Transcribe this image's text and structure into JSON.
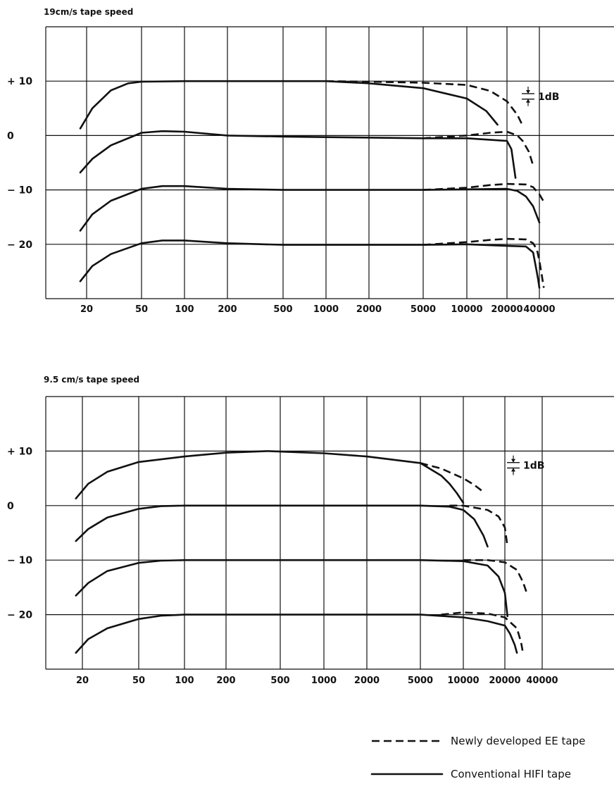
{
  "legend": {
    "entries": [
      {
        "label": "Newly developed EE tape",
        "style": "dashed"
      },
      {
        "label": "Conventional HIFI tape",
        "style": "solid"
      }
    ]
  },
  "chart_data": [
    {
      "type": "line",
      "title": "19cm/s tape speed",
      "xscale": "log",
      "xlim": [
        15,
        60000
      ],
      "ylim": [
        -30,
        20
      ],
      "xticks": [
        20,
        50,
        100,
        200,
        500,
        1000,
        2000,
        5000,
        10000,
        20000,
        40000
      ],
      "xtick_labels": [
        "20",
        "50",
        "100",
        "200",
        "500",
        "1000",
        "2000",
        "5000",
        "10000",
        "20000",
        "40000"
      ],
      "yticks": [
        10,
        0,
        -10,
        -20
      ],
      "ytick_labels": [
        "+ 10",
        "0",
        "− 10",
        "− 20"
      ],
      "scale_marker": "1dB",
      "series": [
        {
          "style": "solid",
          "x": [
            18,
            22,
            30,
            40,
            50,
            100,
            500,
            1000,
            2000,
            5000,
            10000,
            14000,
            17000
          ],
          "y": [
            1.3,
            5,
            8.3,
            9.6,
            9.9,
            10,
            10,
            10,
            9.6,
            8.7,
            6.8,
            4.5,
            2
          ]
        },
        {
          "style": "dashed",
          "x": [
            1000,
            2000,
            5000,
            10000,
            15000,
            20000,
            25000,
            28000
          ],
          "y": [
            10,
            9.9,
            9.7,
            9.3,
            8.2,
            6.3,
            3.8,
            1.8
          ]
        },
        {
          "style": "solid",
          "x": [
            18,
            22,
            30,
            50,
            70,
            100,
            200,
            500,
            1000,
            5000,
            10000,
            20000,
            22000,
            24000
          ],
          "y": [
            -6.8,
            -4.3,
            -1.8,
            0.5,
            0.8,
            0.7,
            0,
            -0.2,
            -0.3,
            -0.5,
            -0.5,
            -1,
            -2.5,
            -7.8
          ]
        },
        {
          "style": "dashed",
          "x": [
            5000,
            10000,
            15000,
            20000,
            25000,
            28000,
            32000,
            35000
          ],
          "y": [
            -0.5,
            0,
            0.5,
            0.7,
            0,
            -1,
            -3,
            -5.5
          ]
        },
        {
          "style": "solid",
          "x": [
            18,
            22,
            30,
            50,
            70,
            100,
            200,
            500,
            1000,
            5000,
            10000,
            20000,
            25000,
            30000,
            35000,
            40000
          ],
          "y": [
            -17.5,
            -14.5,
            -12,
            -9.8,
            -9.3,
            -9.3,
            -9.8,
            -10,
            -10,
            -10,
            -9.9,
            -9.8,
            -10.2,
            -11.2,
            -13,
            -16
          ]
        },
        {
          "style": "dashed",
          "x": [
            5000,
            10000,
            15000,
            20000,
            30000,
            35000,
            40000,
            45000
          ],
          "y": [
            -10,
            -9.6,
            -9.1,
            -8.9,
            -9,
            -9.5,
            -10.8,
            -12.5
          ]
        },
        {
          "style": "solid",
          "x": [
            18,
            22,
            30,
            50,
            70,
            100,
            200,
            500,
            1000,
            5000,
            10000,
            20000,
            30000,
            35000,
            37000,
            39000,
            40000
          ],
          "y": [
            -26.8,
            -24,
            -21.8,
            -19.8,
            -19.3,
            -19.3,
            -19.8,
            -20.1,
            -20.1,
            -20.1,
            -20,
            -20.3,
            -20.4,
            -21.5,
            -24,
            -26.5,
            -28
          ]
        },
        {
          "style": "dashed",
          "x": [
            5000,
            10000,
            15000,
            20000,
            30000,
            35000,
            38000,
            40000,
            42000,
            44000
          ],
          "y": [
            -20.1,
            -19.6,
            -19.2,
            -19,
            -19.1,
            -19.8,
            -21,
            -23,
            -25.5,
            -28
          ]
        }
      ]
    },
    {
      "type": "line",
      "title": "9.5 cm/s tape speed",
      "xscale": "log",
      "xlim": [
        15,
        60000
      ],
      "ylim": [
        -30,
        20
      ],
      "xticks": [
        20,
        50,
        100,
        200,
        500,
        1000,
        2000,
        5000,
        10000,
        20000,
        40000
      ],
      "xtick_labels": [
        "20",
        "50",
        "100",
        "200",
        "500",
        "1000",
        "2000",
        "5000",
        "10000",
        "20000",
        "40000"
      ],
      "yticks": [
        10,
        0,
        -10,
        -20
      ],
      "ytick_labels": [
        "+ 10",
        "0",
        "− 10",
        "− 20"
      ],
      "scale_marker": "1dB",
      "series": [
        {
          "style": "solid",
          "x": [
            18,
            22,
            30,
            50,
            100,
            200,
            400,
            1000,
            2000,
            5000,
            7000,
            8000,
            9000,
            10000
          ],
          "y": [
            1.3,
            4,
            6.2,
            8,
            9,
            9.7,
            10,
            9.6,
            9,
            7.8,
            5.5,
            4,
            2.3,
            0.5
          ]
        },
        {
          "style": "dashed",
          "x": [
            5000,
            7000,
            10000,
            12000,
            14000
          ],
          "y": [
            7.8,
            6.8,
            5,
            3.8,
            2.5
          ]
        },
        {
          "style": "solid",
          "x": [
            18,
            22,
            30,
            50,
            70,
            100,
            500,
            1000,
            5000,
            8000,
            10000,
            12000,
            14000,
            15000
          ],
          "y": [
            -6.5,
            -4.3,
            -2.2,
            -0.6,
            -0.1,
            0,
            0,
            0,
            0,
            -0.2,
            -0.8,
            -2.5,
            -5.5,
            -7.5
          ]
        },
        {
          "style": "dashed",
          "x": [
            8000,
            10000,
            15000,
            18000,
            20000,
            21000
          ],
          "y": [
            0,
            0,
            -0.8,
            -2,
            -4,
            -7.5
          ]
        },
        {
          "style": "solid",
          "x": [
            18,
            22,
            30,
            50,
            70,
            100,
            500,
            1000,
            5000,
            10000,
            15000,
            18000,
            20000,
            21000
          ],
          "y": [
            -16.5,
            -14.2,
            -12,
            -10.5,
            -10.1,
            -10,
            -10,
            -10,
            -10,
            -10.2,
            -11,
            -13,
            -16,
            -20.3
          ]
        },
        {
          "style": "dashed",
          "x": [
            10000,
            15000,
            20000,
            25000,
            28000,
            30000
          ],
          "y": [
            -10,
            -10,
            -10.4,
            -11.8,
            -14,
            -16
          ]
        },
        {
          "style": "solid",
          "x": [
            18,
            22,
            30,
            50,
            70,
            100,
            500,
            1000,
            5000,
            10000,
            15000,
            20000,
            22000,
            24000,
            25000
          ],
          "y": [
            -27,
            -24.5,
            -22.5,
            -20.8,
            -20.2,
            -20,
            -20,
            -20,
            -20,
            -20.5,
            -21.2,
            -22,
            -23.5,
            -25.5,
            -27
          ]
        },
        {
          "style": "dashed",
          "x": [
            7000,
            10000,
            15000,
            20000,
            25000,
            27000,
            28000
          ],
          "y": [
            -20,
            -19.6,
            -19.8,
            -20.5,
            -22.5,
            -25,
            -27
          ]
        }
      ]
    }
  ]
}
